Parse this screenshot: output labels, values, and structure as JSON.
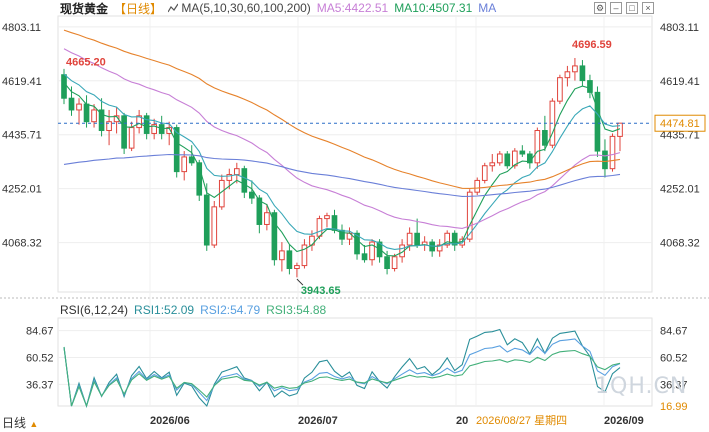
{
  "header": {
    "instrument": "现货黄金",
    "period": "【日线】",
    "ma_label": "MA(5,10,30,60,100,200)",
    "ma5_label": "MA5:4422.51",
    "ma10_label": "MA10:4507.31",
    "ma_tag": "MA"
  },
  "rsi_header": {
    "label": "RSI(6,12,24)",
    "rsi1": "RSI1:52.09",
    "rsi2": "RSI2:54.79",
    "rsi3": "RSI3:54.88"
  },
  "bottom": {
    "period_label": "日线",
    "arrow": "▲"
  },
  "watermark": "1QH.CN",
  "colors": {
    "up": "#e0443c",
    "down": "#1f9f5a",
    "ma_purple": "#c77fd6",
    "ma_orange": "#e6822b",
    "ma_blue": "#6a7fd8",
    "ma_green": "#1f9f5a",
    "rsi1": "#2a8f9a",
    "rsi2": "#5aa0e0",
    "rsi3": "#43b07a"
  },
  "chart_data": [
    {
      "type": "candlestick",
      "y_ticks": [
        "4803.11",
        "4619.41",
        "4435.71",
        "4252.01",
        "4068.32"
      ],
      "ylim": [
        3900,
        4840
      ],
      "x_labels": [
        "2026/06",
        "2026/07",
        "20",
        "2026/08/27 星期四",
        "2026/09"
      ],
      "annotations": {
        "high_first": "4665.20",
        "high_peak": "4696.59",
        "low": "3943.65"
      },
      "current_price": "4474.81",
      "candles": [
        [
          4640,
          4660,
          4540,
          4560
        ],
        [
          4560,
          4600,
          4500,
          4520
        ],
        [
          4520,
          4560,
          4470,
          4540
        ],
        [
          4540,
          4570,
          4460,
          4480
        ],
        [
          4480,
          4540,
          4460,
          4520
        ],
        [
          4520,
          4560,
          4430,
          4450
        ],
        [
          4450,
          4520,
          4400,
          4480
        ],
        [
          4480,
          4530,
          4440,
          4500
        ],
        [
          4500,
          4510,
          4370,
          4390
        ],
        [
          4390,
          4480,
          4380,
          4460
        ],
        [
          4460,
          4520,
          4440,
          4500
        ],
        [
          4500,
          4510,
          4420,
          4440
        ],
        [
          4440,
          4490,
          4420,
          4470
        ],
        [
          4470,
          4500,
          4420,
          4440
        ],
        [
          4440,
          4480,
          4400,
          4460
        ],
        [
          4460,
          4470,
          4290,
          4310
        ],
        [
          4310,
          4380,
          4280,
          4360
        ],
        [
          4360,
          4400,
          4330,
          4340
        ],
        [
          4340,
          4350,
          4210,
          4230
        ],
        [
          4230,
          4270,
          4040,
          4060
        ],
        [
          4060,
          4210,
          4050,
          4190
        ],
        [
          4190,
          4300,
          4180,
          4280
        ],
        [
          4280,
          4320,
          4250,
          4300
        ],
        [
          4300,
          4340,
          4270,
          4320
        ],
        [
          4320,
          4330,
          4220,
          4240
        ],
        [
          4240,
          4280,
          4200,
          4220
        ],
        [
          4220,
          4230,
          4100,
          4130
        ],
        [
          4130,
          4200,
          4110,
          4170
        ],
        [
          4170,
          4180,
          3990,
          4010
        ],
        [
          4010,
          4070,
          3970,
          4040
        ],
        [
          4040,
          4060,
          3960,
          3980
        ],
        [
          3980,
          4000,
          3950,
          3990
        ],
        [
          3990,
          4080,
          3980,
          4060
        ],
        [
          4060,
          4110,
          4040,
          4090
        ],
        [
          4090,
          4160,
          4080,
          4150
        ],
        [
          4150,
          4170,
          4120,
          4160
        ],
        [
          4160,
          4180,
          4100,
          4110
        ],
        [
          4110,
          4130,
          4060,
          4080
        ],
        [
          4080,
          4120,
          4060,
          4100
        ],
        [
          4100,
          4110,
          4010,
          4030
        ],
        [
          4030,
          4060,
          4000,
          4010
        ],
        [
          4010,
          4080,
          3990,
          4070
        ],
        [
          4070,
          4080,
          4000,
          4020
        ],
        [
          4020,
          4040,
          3960,
          3980
        ],
        [
          3980,
          4030,
          3970,
          4020
        ],
        [
          4020,
          4080,
          4000,
          4060
        ],
        [
          4060,
          4120,
          4040,
          4100
        ],
        [
          4100,
          4150,
          4050,
          4060
        ],
        [
          4060,
          4090,
          4040,
          4070
        ],
        [
          4070,
          4080,
          4020,
          4040
        ],
        [
          4040,
          4080,
          4020,
          4060
        ],
        [
          4060,
          4110,
          4050,
          4100
        ],
        [
          4100,
          4110,
          4040,
          4060
        ],
        [
          4060,
          4090,
          4050,
          4080
        ],
        [
          4080,
          4250,
          4070,
          4240
        ],
        [
          4240,
          4290,
          4230,
          4280
        ],
        [
          4280,
          4340,
          4270,
          4330
        ],
        [
          4330,
          4370,
          4310,
          4340
        ],
        [
          4340,
          4380,
          4330,
          4370
        ],
        [
          4370,
          4380,
          4320,
          4330
        ],
        [
          4330,
          4390,
          4320,
          4380
        ],
        [
          4380,
          4400,
          4360,
          4370
        ],
        [
          4370,
          4380,
          4320,
          4340
        ],
        [
          4340,
          4460,
          4320,
          4450
        ],
        [
          4450,
          4500,
          4380,
          4400
        ],
        [
          4400,
          4560,
          4390,
          4550
        ],
        [
          4550,
          4640,
          4540,
          4630
        ],
        [
          4630,
          4670,
          4600,
          4650
        ],
        [
          4650,
          4697,
          4620,
          4670
        ],
        [
          4670,
          4690,
          4600,
          4620
        ],
        [
          4620,
          4640,
          4560,
          4580
        ],
        [
          4580,
          4600,
          4360,
          4380
        ],
        [
          4380,
          4420,
          4290,
          4320
        ],
        [
          4320,
          4440,
          4310,
          4430
        ],
        [
          4430,
          4475,
          4380,
          4475
        ]
      ],
      "rsi": {
        "y_ticks": [
          "84.67",
          "60.52",
          "36.37",
          "16.99"
        ],
        "ylim": [
          16.99,
          96
        ]
      }
    }
  ]
}
